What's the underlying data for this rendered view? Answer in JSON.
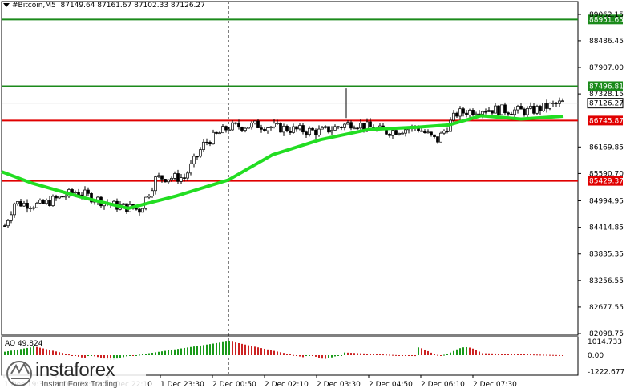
{
  "header": {
    "symbol": "#Bitcoin,M5",
    "ohlc": "87149.64 87161.67 87102.33 87126.27"
  },
  "price_axis": {
    "ticks": [
      "89062.15",
      "88486.45",
      "87907.00",
      "87328.15",
      "86169.85",
      "85590.70",
      "84994.95",
      "84414.85",
      "83835.35",
      "83256.55",
      "82677.55",
      "82098.75"
    ]
  },
  "levels": [
    {
      "value": "88951.65",
      "color": "#1b8a1b"
    },
    {
      "value": "87496.81",
      "color": "#1b8a1b"
    },
    {
      "value": "86745.87",
      "color": "#e00000"
    },
    {
      "value": "85429.37",
      "color": "#e00000"
    }
  ],
  "current_price": "87126.27",
  "indicator": {
    "label": "AO 49.824",
    "ticks": [
      "1014.733",
      "0.00",
      "-1222.677"
    ]
  },
  "time_axis": {
    "labels": [
      "1 Dec 19:30",
      "1 Dec 20:50",
      "1 Dec 22:10",
      "1 Dec 23:30",
      "2 Dec 00:50",
      "2 Dec 02:10",
      "2 Dec 03:30",
      "2 Dec 04:50",
      "2 Dec 06:10",
      "2 Dec 07:30"
    ]
  },
  "logo": {
    "brand": "instaforex",
    "tagline": "Instant Forex Trading"
  },
  "colors": {
    "ma": "#22dd22",
    "ao_up": "#1a9a1a",
    "ao_down": "#cc2222"
  }
}
